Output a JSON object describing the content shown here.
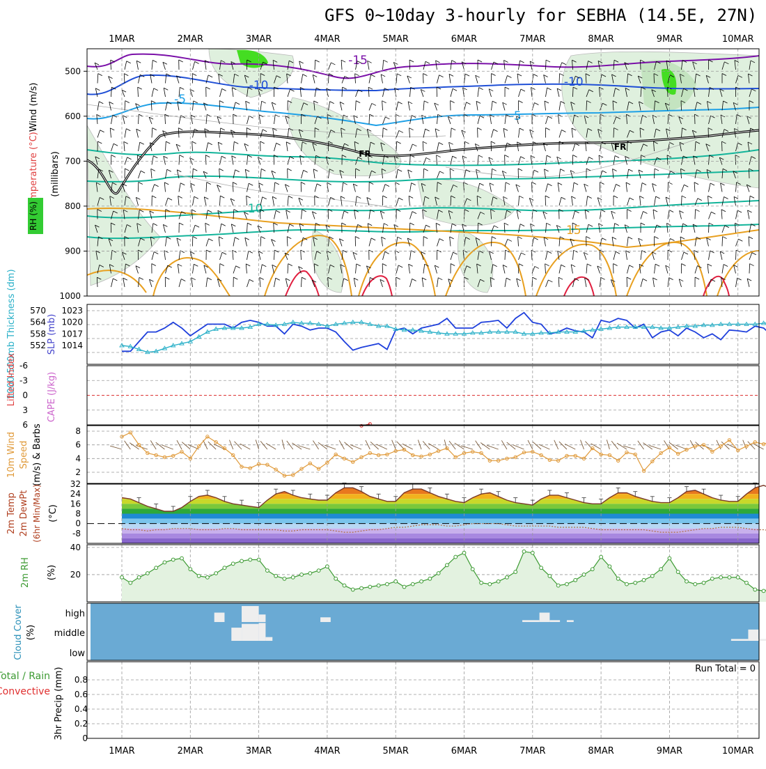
{
  "title": "GFS 0~10day 3-hourly for SEBHA (14.5E, 27N)",
  "dates": [
    "1MAR",
    "2MAR",
    "3MAR",
    "4MAR",
    "5MAR",
    "6MAR",
    "7MAR",
    "8MAR",
    "9MAR",
    "10MAR"
  ],
  "colors": {
    "wind_barb": "#000000",
    "temp_line_violet": "#7a0fa8",
    "temp_line_blue": "#1f4fd6",
    "temp_line_lightblue": "#1ea0e6",
    "temp_line_teal": "#12b49a",
    "temp_line_orange": "#e8a020",
    "temp_line_red": "#e02040",
    "freezing_line": "#000000",
    "rh_shade": "#dff0de",
    "rh_shade_dark": "#c4e4c0",
    "rh_peak": "#44dd22",
    "slp_line": "#1e3fdc",
    "thickness_line": "#2ab0c8",
    "lifted_index": "#e03030",
    "wind_speed_line": "#e09a3a",
    "cloud_bg": "#6aaad4",
    "cloud_fill": "#eeeeee",
    "rh_line": "#3c9a32",
    "rh_fill": "#e3f2e0"
  },
  "chart_data": [
    {
      "type": "heatmap",
      "name": "pressure-level profile",
      "ylabel_parts": [
        "RH (%)",
        "Temperature (°C)",
        "Wind (m/s)",
        "(millibars)"
      ],
      "yticks": [
        "500",
        "600",
        "700",
        "800",
        "900",
        "1000"
      ],
      "ylim": [
        450,
        1000
      ],
      "contour_labels": [
        {
          "text": "-15",
          "x": 3.45
        },
        {
          "text": "-10",
          "x": 2.0
        },
        {
          "text": "-10",
          "x": 6.6
        },
        {
          "text": "-5",
          "x": 0.85
        },
        {
          "text": "-5",
          "x": 5.75
        },
        {
          "text": "10",
          "x": 1.95
        },
        {
          "text": "15",
          "x": 6.6
        },
        {
          "text": "FR",
          "x": 3.55
        },
        {
          "text": "FR",
          "x": 7.28
        }
      ],
      "grid": true
    },
    {
      "type": "line",
      "name": "1000-500mb thickness & SLP",
      "ylabel_left": "1000-500mb Thickness (dm)",
      "ylabel_right": "SLP (mb)",
      "left_ticks": [
        "570",
        "564",
        "558",
        "552"
      ],
      "right_ticks": [
        "1023",
        "1020",
        "1017",
        "1014"
      ],
      "x": [
        0,
        0.125,
        0.25,
        0.375,
        0.5,
        0.625,
        0.75,
        0.875,
        1,
        1.125,
        1.25,
        1.375,
        1.5,
        1.625,
        1.75,
        1.875,
        2,
        2.125,
        2.25,
        2.375,
        2.5,
        2.625,
        2.75,
        2.875,
        3,
        3.125,
        3.25,
        3.375,
        3.5,
        3.625,
        3.75,
        3.875,
        4,
        4.125,
        4.25,
        4.375,
        4.5,
        4.625,
        4.75,
        4.875,
        5,
        5.125,
        5.25,
        5.375,
        5.5,
        5.625,
        5.75,
        5.875,
        6,
        6.125,
        6.25,
        6.375,
        6.5,
        6.625,
        6.75,
        6.875,
        7,
        7.125,
        7.25,
        7.375,
        7.5,
        7.625,
        7.75,
        7.875,
        8,
        8.125,
        8.25,
        8.375,
        8.5,
        8.625,
        8.75,
        8.875,
        9,
        9.125,
        9.25,
        9.375,
        9.5,
        9.625,
        9.75,
        9.875,
        10
      ],
      "slp": [
        1012.5,
        1012.5,
        1015,
        1017.5,
        1017.5,
        1018.5,
        1020,
        1018.5,
        1016.5,
        1018,
        1019.5,
        1019.5,
        1019.5,
        1018.5,
        1020,
        1020.5,
        1020,
        1019,
        1019,
        1017,
        1019.5,
        1019,
        1018,
        1018.5,
        1018.5,
        1017.5,
        1015,
        1012.8,
        1013.5,
        1014,
        1014.5,
        1013,
        1018,
        1018.5,
        1017,
        1018.5,
        1019,
        1019.5,
        1021,
        1018.5,
        1018.5,
        1018.5,
        1020,
        1020.2,
        1020.5,
        1018.5,
        1021,
        1022.5,
        1020,
        1019.5,
        1017,
        1017.5,
        1018.5,
        1017.8,
        1017.5,
        1016,
        1020.5,
        1020,
        1021,
        1020.5,
        1018.5,
        1019.5,
        1016,
        1017.5,
        1018,
        1016.5,
        1018.5,
        1017.5,
        1016,
        1017,
        1015.5,
        1018,
        1017.8,
        1017.5,
        1019,
        1018.5,
        1016.5,
        1015,
        1018,
        1018,
        1018.5
      ],
      "thickness": [
        552,
        551.5,
        550,
        548.5,
        549,
        550.5,
        552,
        553,
        554,
        556.5,
        559,
        560.5,
        561,
        561,
        561,
        561.5,
        563,
        563,
        562.5,
        563,
        564,
        563.5,
        563.5,
        563,
        562,
        563,
        563.5,
        564,
        564,
        563,
        562,
        562,
        560.5,
        560,
        560,
        559.5,
        559,
        558.5,
        558,
        558,
        558,
        558.5,
        558.5,
        559,
        559,
        559,
        559,
        558,
        558,
        558.5,
        558.5,
        559,
        559,
        559,
        559.5,
        560,
        560.5,
        561,
        561.5,
        561.5,
        561.5,
        561.5,
        561.5,
        561,
        561,
        561.5,
        562,
        562,
        562.5,
        562.5,
        563,
        563,
        563,
        563,
        563,
        563.5,
        564,
        565,
        566.5,
        567,
        567.5
      ],
      "grid": true
    },
    {
      "type": "line",
      "name": "CAPE & Lifted Index",
      "ylabel_left": "Lifted Index",
      "ylabel_right": "CAPE (J/kg)",
      "yticks": [
        "-6",
        "-3",
        "0",
        "3",
        "6"
      ],
      "ylim": [
        -6,
        6
      ],
      "cape_x": [
        3.5,
        3.625
      ],
      "cape": [
        6.2,
        5.8
      ],
      "grid": true
    },
    {
      "type": "line",
      "name": "10m wind",
      "ylabel": "10m Wind Speed (m/s) & Barbs",
      "yticks": [
        "8",
        "6",
        "4",
        "2"
      ],
      "ylim": [
        1,
        8.5
      ],
      "x": [
        0,
        0.125,
        0.25,
        0.375,
        0.5,
        0.625,
        0.75,
        0.875,
        1,
        1.125,
        1.25,
        1.375,
        1.5,
        1.625,
        1.75,
        1.875,
        2,
        2.125,
        2.25,
        2.375,
        2.5,
        2.625,
        2.75,
        2.875,
        3,
        3.125,
        3.25,
        3.375,
        3.5,
        3.625,
        3.75,
        3.875,
        4,
        4.125,
        4.25,
        4.375,
        4.5,
        4.625,
        4.75,
        4.875,
        5,
        5.125,
        5.25,
        5.375,
        5.5,
        5.625,
        5.75,
        5.875,
        6,
        6.125,
        6.25,
        6.375,
        6.5,
        6.625,
        6.75,
        6.875,
        7,
        7.125,
        7.25,
        7.375,
        7.5,
        7.625,
        7.75,
        7.875,
        8,
        8.125,
        8.25,
        8.375,
        8.5,
        8.625,
        8.75,
        8.875,
        9,
        9.125,
        9.25,
        9.375,
        9.5,
        9.625,
        9.75,
        9.875,
        10
      ],
      "speed": [
        7.2,
        7.8,
        6.0,
        4.8,
        4.5,
        4.2,
        4.4,
        5.0,
        4.0,
        5.8,
        7.2,
        6.4,
        5.5,
        4.5,
        2.8,
        2.6,
        3.2,
        3.1,
        2.4,
        1.5,
        1.6,
        2.5,
        3.3,
        2.5,
        3.4,
        4.6,
        4.0,
        3.5,
        4.2,
        4.8,
        4.5,
        4.6,
        5.1,
        5.3,
        4.5,
        4.3,
        4.6,
        5.1,
        5.5,
        4.2,
        4.8,
        5.0,
        4.8,
        3.7,
        3.7,
        4.0,
        4.2,
        4.9,
        5.0,
        4.5,
        3.8,
        3.7,
        4.4,
        4.4,
        4.0,
        5.5,
        4.6,
        4.5,
        3.7,
        4.9,
        4.6,
        2.2,
        3.6,
        4.8,
        5.6,
        4.7,
        5.3,
        5.8,
        6.0,
        5.0,
        5.8,
        6.7,
        5.2,
        5.8,
        6.4,
        6.1,
        6.6,
        5.2,
        5.9,
        6.3,
        7.2
      ],
      "grid": true
    },
    {
      "type": "area",
      "name": "2m temperature & dewpoint",
      "ylabel": "2m Temp 2m DewPt (6hr Min/Max) (°C)",
      "yticks": [
        "32",
        "24",
        "16",
        "8",
        "0",
        "-8"
      ],
      "ylim": [
        -16,
        32
      ],
      "x": [
        0,
        0.125,
        0.25,
        0.375,
        0.5,
        0.625,
        0.75,
        0.875,
        1,
        1.125,
        1.25,
        1.375,
        1.5,
        1.625,
        1.75,
        1.875,
        2,
        2.125,
        2.25,
        2.375,
        2.5,
        2.625,
        2.75,
        2.875,
        3,
        3.125,
        3.25,
        3.375,
        3.5,
        3.625,
        3.75,
        3.875,
        4,
        4.125,
        4.25,
        4.375,
        4.5,
        4.625,
        4.75,
        4.875,
        5,
        5.125,
        5.25,
        5.375,
        5.5,
        5.625,
        5.75,
        5.875,
        6,
        6.125,
        6.25,
        6.375,
        6.5,
        6.625,
        6.75,
        6.875,
        7,
        7.125,
        7.25,
        7.375,
        7.5,
        7.625,
        7.75,
        7.875,
        8,
        8.125,
        8.25,
        8.375,
        8.5,
        8.625,
        8.75,
        8.875,
        9,
        9.125,
        9.25,
        9.375,
        9.5,
        9.625,
        9.75,
        9.875,
        10
      ],
      "temp": [
        21,
        20,
        17,
        14,
        12,
        10,
        10,
        13,
        18,
        22,
        23,
        21,
        18,
        16,
        15,
        14,
        13,
        19,
        24,
        26,
        23,
        21,
        20,
        19,
        19,
        25,
        29,
        29,
        26,
        22,
        20,
        18,
        18,
        25,
        28,
        28,
        25,
        22,
        20,
        18,
        17,
        21,
        24,
        25,
        22,
        19,
        17,
        16,
        15,
        20,
        23,
        23,
        21,
        19,
        17,
        16,
        16,
        21,
        25,
        25,
        22,
        20,
        18,
        17,
        17,
        21,
        26,
        27,
        24,
        21,
        19,
        18,
        18,
        24,
        29,
        31,
        28,
        24,
        22,
        20,
        19
      ],
      "dewpoint": [
        -4,
        -5,
        -5,
        -6,
        -5,
        -5,
        -4,
        -4,
        -4,
        -5,
        -5,
        -5,
        -4,
        -4,
        -5,
        -5,
        -5,
        -5,
        -5,
        -6,
        -6,
        -5,
        -5,
        -5,
        -5,
        -6,
        -7,
        -7,
        -6,
        -5,
        -5,
        -4,
        -3,
        -3,
        -2,
        -1,
        -1,
        -1,
        -2,
        -2,
        -1,
        0,
        0,
        0,
        0,
        -1,
        -2,
        -2,
        -2,
        -2,
        -2,
        -3,
        -3,
        -3,
        -3,
        -4,
        -5,
        -5,
        -5,
        -5,
        -5,
        -5,
        -6,
        -7,
        -7,
        -7,
        -6,
        -5,
        -4,
        -4,
        -3,
        -3,
        -3,
        -4,
        -5,
        -5,
        -6,
        -6,
        -8,
        -10,
        -11
      ],
      "grid": true
    },
    {
      "type": "area",
      "name": "2m relative humidity",
      "ylabel": "2m RH (%)",
      "yticks": [
        "40",
        "20"
      ],
      "ylim": [
        0,
        42
      ],
      "x": [
        0,
        0.125,
        0.25,
        0.375,
        0.5,
        0.625,
        0.75,
        0.875,
        1,
        1.125,
        1.25,
        1.375,
        1.5,
        1.625,
        1.75,
        1.875,
        2,
        2.125,
        2.25,
        2.375,
        2.5,
        2.625,
        2.75,
        2.875,
        3,
        3.125,
        3.25,
        3.375,
        3.5,
        3.625,
        3.75,
        3.875,
        4,
        4.125,
        4.25,
        4.375,
        4.5,
        4.625,
        4.75,
        4.875,
        5,
        5.125,
        5.25,
        5.375,
        5.5,
        5.625,
        5.75,
        5.875,
        6,
        6.125,
        6.25,
        6.375,
        6.5,
        6.625,
        6.75,
        6.875,
        7,
        7.125,
        7.25,
        7.375,
        7.5,
        7.625,
        7.75,
        7.875,
        8,
        8.125,
        8.25,
        8.375,
        8.5,
        8.625,
        8.75,
        8.875,
        9,
        9.125,
        9.25,
        9.375,
        9.5,
        9.625,
        9.75,
        9.875,
        10
      ],
      "rh": [
        18,
        14,
        18,
        21,
        25,
        29,
        31,
        32,
        24,
        19,
        18,
        21,
        25,
        28,
        30,
        31,
        31,
        23,
        19,
        17,
        18,
        20,
        21,
        23,
        26,
        17,
        12,
        9,
        10,
        11,
        12,
        13,
        15,
        11,
        13,
        15,
        17,
        21,
        27,
        33,
        36,
        24,
        14,
        13,
        15,
        18,
        22,
        37,
        36,
        25,
        19,
        12,
        13,
        16,
        20,
        24,
        33,
        26,
        17,
        13,
        14,
        16,
        19,
        24,
        32,
        22,
        15,
        13,
        14,
        17,
        18,
        18,
        18,
        14,
        9,
        8,
        10,
        11,
        11,
        11,
        10
      ],
      "grid": true
    },
    {
      "type": "heatmap",
      "name": "cloud cover",
      "ylabel": "Cloud Cover (%)",
      "row_labels": [
        "high",
        "middle",
        "low"
      ],
      "blocks": [
        {
          "layer": "high",
          "x0": 1.35,
          "x1": 1.5,
          "level": 0.5
        },
        {
          "layer": "high",
          "x0": 1.75,
          "x1": 2.0,
          "level": 0.85
        },
        {
          "layer": "high",
          "x0": 2.0,
          "x1": 2.1,
          "level": 0.4
        },
        {
          "layer": "high",
          "x0": 2.9,
          "x1": 3.05,
          "level": 0.25
        },
        {
          "layer": "high",
          "x0": 5.85,
          "x1": 6.1,
          "level": 0.1
        },
        {
          "layer": "high",
          "x0": 6.1,
          "x1": 6.25,
          "level": 0.5
        },
        {
          "layer": "high",
          "x0": 6.25,
          "x1": 6.4,
          "level": 0.1
        },
        {
          "layer": "high",
          "x0": 6.5,
          "x1": 6.6,
          "level": 0.1
        },
        {
          "layer": "middle",
          "x0": 1.6,
          "x1": 1.75,
          "level": 0.7
        },
        {
          "layer": "middle",
          "x0": 1.75,
          "x1": 2.0,
          "level": 0.9
        },
        {
          "layer": "middle",
          "x0": 2.0,
          "x1": 2.1,
          "level": 0.95
        },
        {
          "layer": "middle",
          "x0": 2.1,
          "x1": 2.2,
          "level": 0.2
        },
        {
          "layer": "middle",
          "x0": 8.9,
          "x1": 9.15,
          "level": 0.1
        },
        {
          "layer": "middle",
          "x0": 9.15,
          "x1": 9.3,
          "level": 0.6
        },
        {
          "layer": "middle",
          "x0": 9.3,
          "x1": 9.45,
          "level": 0.1
        },
        {
          "layer": "middle",
          "x0": 9.75,
          "x1": 9.9,
          "level": 0.15
        },
        {
          "layer": "middle",
          "x0": 9.9,
          "x1": 10.05,
          "level": 0.35
        },
        {
          "layer": "middle",
          "x0": 10.05,
          "x1": 10.15,
          "level": 0.15
        }
      ]
    },
    {
      "type": "bar",
      "name": "3hr precip",
      "ylabel_left_parts": [
        "Total / Rain",
        "Convective"
      ],
      "ylabel": "3hr Precip (mm)",
      "yticks": [
        "0.8",
        "0.6",
        "0.4",
        "0.2",
        "0"
      ],
      "ylim": [
        0,
        1
      ],
      "run_total": "Run Total = 0",
      "values": [],
      "grid": true
    }
  ]
}
